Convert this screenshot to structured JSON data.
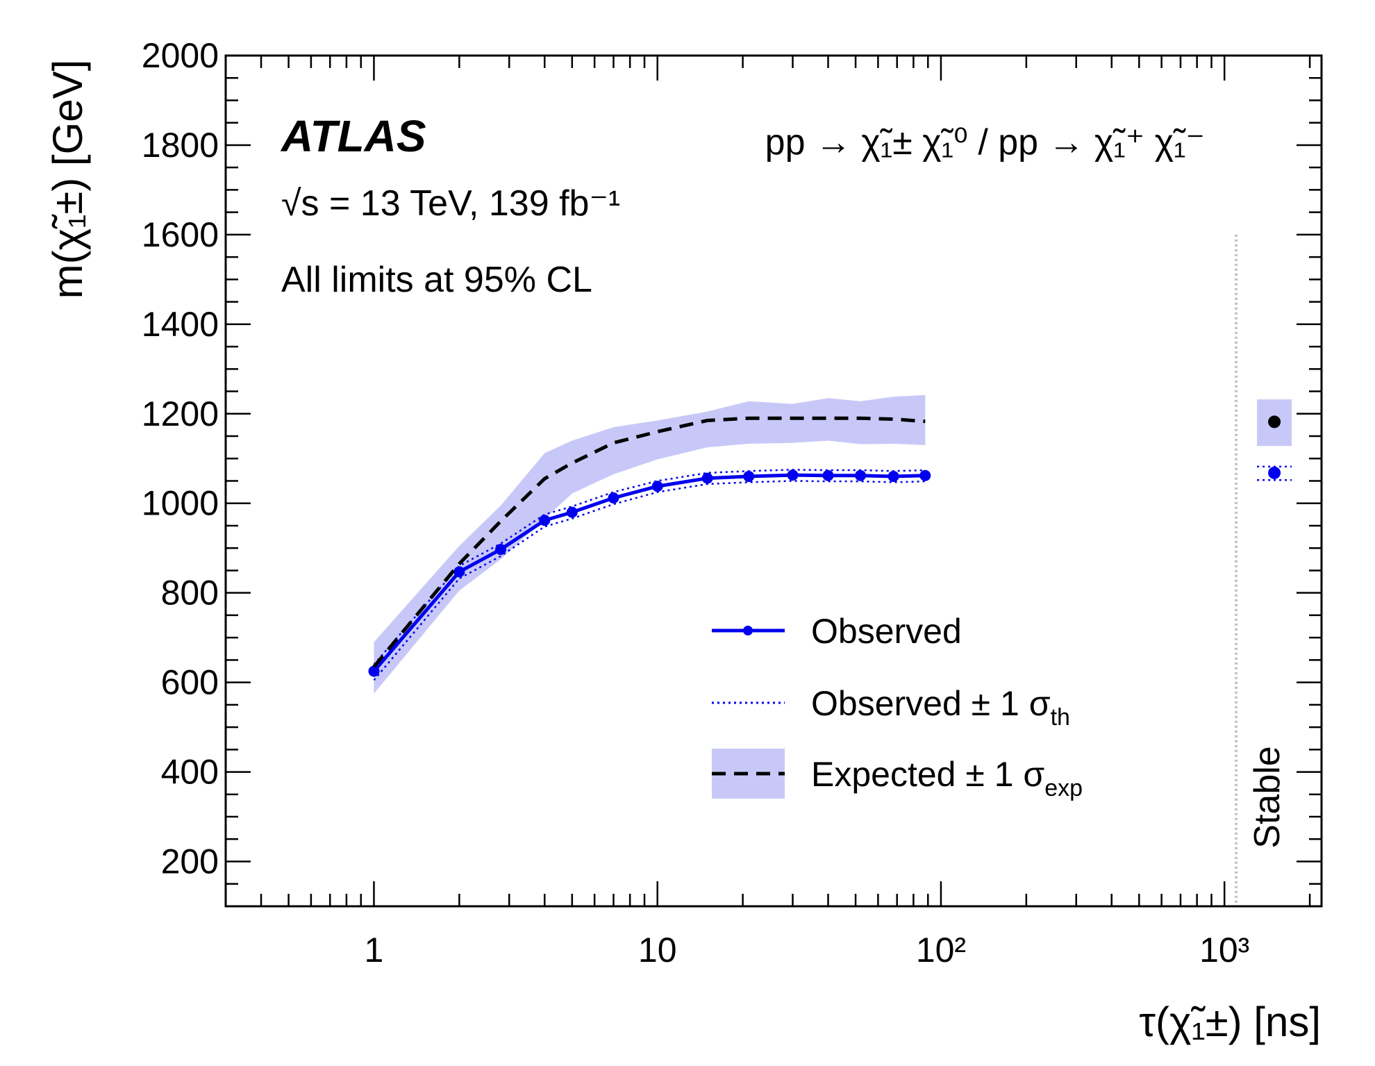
{
  "chart_data": {
    "type": "line",
    "experiment": "ATLAS",
    "energy_label": "√s = 13 TeV, 139 fb⁻¹",
    "cl_label": "All limits at 95% CL",
    "process_label": "pp → χ̃₁± χ̃₁⁰ / pp → χ̃₁⁺ χ̃₁⁻",
    "xlabel": "τ(χ̃₁±) [ns]",
    "ylabel": "m(χ̃₁±) [GeV]",
    "xscale": "log",
    "xlim": [
      0.3,
      2200
    ],
    "ylim": [
      100,
      2000
    ],
    "x_tick_labels": [
      "1",
      "10",
      "10²",
      "10³"
    ],
    "y_ticks": [
      200,
      400,
      600,
      800,
      1000,
      1200,
      1400,
      1600,
      1800,
      2000
    ],
    "stable_label": "Stable",
    "stable_line_x": 1100,
    "series": [
      {
        "name": "Observed",
        "style": "solid-markers",
        "color": "#0000ee",
        "x": [
          1,
          2,
          2.8,
          4,
          5,
          7,
          10,
          15,
          21,
          30,
          40,
          52,
          68,
          88
        ],
        "y": [
          625,
          847,
          897,
          962,
          980,
          1012,
          1038,
          1056,
          1060,
          1063,
          1062,
          1062,
          1060,
          1062
        ]
      },
      {
        "name": "Observed ± 1 σ_th (upper)",
        "style": "dotted",
        "color": "#0000ee",
        "x": [
          1,
          2,
          2.8,
          4,
          5,
          7,
          10,
          15,
          21,
          30,
          40,
          52,
          68,
          88
        ],
        "y": [
          640,
          860,
          910,
          975,
          993,
          1025,
          1050,
          1068,
          1072,
          1075,
          1074,
          1074,
          1072,
          1074
        ]
      },
      {
        "name": "Observed ± 1 σ_th (lower)",
        "style": "dotted",
        "color": "#0000ee",
        "x": [
          1,
          2,
          2.8,
          4,
          5,
          7,
          10,
          15,
          21,
          30,
          40,
          52,
          68,
          88
        ],
        "y": [
          605,
          832,
          882,
          948,
          966,
          998,
          1025,
          1043,
          1047,
          1050,
          1049,
          1049,
          1047,
          1049
        ]
      },
      {
        "name": "Expected",
        "style": "dashed",
        "color": "#000000",
        "x": [
          1,
          2,
          2.8,
          4,
          5,
          7,
          10,
          15,
          21,
          30,
          40,
          52,
          68,
          88
        ],
        "y": [
          635,
          865,
          960,
          1055,
          1090,
          1135,
          1160,
          1185,
          1190,
          1190,
          1190,
          1190,
          1188,
          1183
        ]
      }
    ],
    "expected_band": {
      "name": "Expected ± 1 σ_exp",
      "color": "#c8c8f8",
      "x": [
        1,
        2,
        2.8,
        4,
        5,
        7,
        10,
        15,
        21,
        30,
        40,
        52,
        68,
        88
      ],
      "upper": [
        690,
        905,
        995,
        1112,
        1140,
        1170,
        1185,
        1205,
        1228,
        1222,
        1235,
        1228,
        1238,
        1242
      ],
      "lower": [
        575,
        805,
        875,
        965,
        1022,
        1065,
        1098,
        1125,
        1133,
        1135,
        1140,
        1132,
        1133,
        1130
      ]
    },
    "stable_points": {
      "x": 1500,
      "expected": 1182,
      "expected_band": [
        1128,
        1232
      ],
      "observed": 1068,
      "observed_band": [
        1052,
        1082
      ]
    },
    "legend": [
      {
        "label": "Observed"
      },
      {
        "label": "Observed ± 1 σ",
        "subscript": "th"
      },
      {
        "label": "Expected ± 1 σ",
        "subscript": "exp"
      }
    ]
  }
}
